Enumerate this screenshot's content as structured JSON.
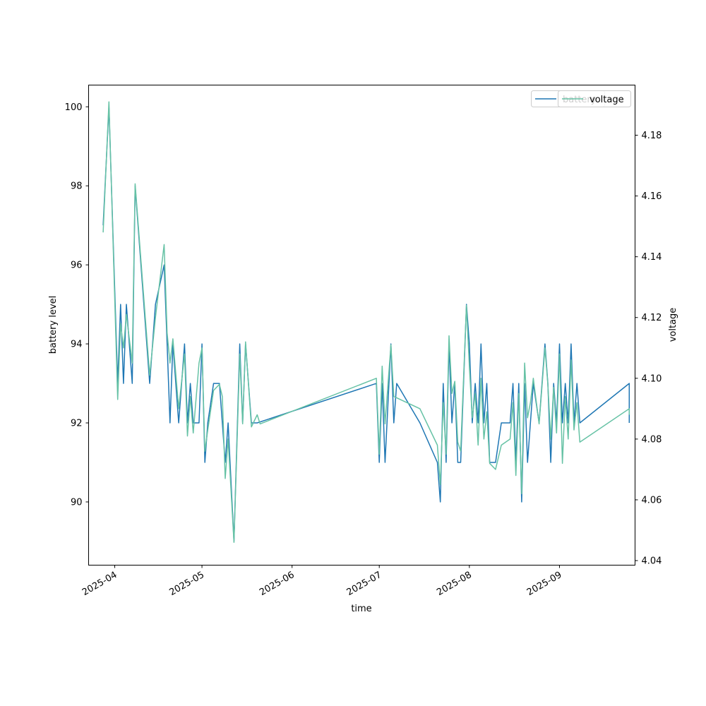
{
  "chart_data": {
    "type": "line",
    "xlabel": "time",
    "ylabel_left": "battery level",
    "ylabel_right": "voltage",
    "xlim": [
      "2025-03-23",
      "2025-09-27"
    ],
    "ylim_left": [
      88.4,
      100.55
    ],
    "ylim_right": [
      4.0385,
      4.1965
    ],
    "x_ticks": [
      {
        "date": "2025-04-01",
        "label": "2025-04"
      },
      {
        "date": "2025-05-01",
        "label": "2025-05"
      },
      {
        "date": "2025-06-01",
        "label": "2025-06"
      },
      {
        "date": "2025-07-01",
        "label": "2025-07"
      },
      {
        "date": "2025-08-01",
        "label": "2025-08"
      },
      {
        "date": "2025-09-01",
        "label": "2025-09"
      }
    ],
    "y_ticks_left": [
      "90",
      "92",
      "94",
      "96",
      "98",
      "100"
    ],
    "y_ticks_right": [
      "4.04",
      "4.06",
      "4.08",
      "4.10",
      "4.12",
      "4.14",
      "4.16",
      "4.18"
    ],
    "legend_placement": "top-right",
    "grid": false,
    "series": [
      {
        "name": "battery",
        "axis": "left",
        "color": "#1f77b4",
        "points": [
          [
            "2025-03-28",
            97
          ],
          [
            "2025-03-30",
            100
          ],
          [
            "2025-04-02",
            93
          ],
          [
            "2025-04-03",
            95
          ],
          [
            "2025-04-04",
            93
          ],
          [
            "2025-04-05",
            95
          ],
          [
            "2025-04-07",
            93
          ],
          [
            "2025-04-08",
            98
          ],
          [
            "2025-04-13",
            93
          ],
          [
            "2025-04-15",
            95
          ],
          [
            "2025-04-18",
            96
          ],
          [
            "2025-04-19",
            94
          ],
          [
            "2025-04-20",
            92
          ],
          [
            "2025-04-21",
            94
          ],
          [
            "2025-04-23",
            92
          ],
          [
            "2025-04-25",
            94
          ],
          [
            "2025-04-26",
            92
          ],
          [
            "2025-04-27",
            93
          ],
          [
            "2025-04-28",
            92
          ],
          [
            "2025-04-30",
            92
          ],
          [
            "2025-05-01",
            94
          ],
          [
            "2025-05-02",
            91
          ],
          [
            "2025-05-03",
            92
          ],
          [
            "2025-05-05",
            93
          ],
          [
            "2025-05-07",
            93
          ],
          [
            "2025-05-08",
            92
          ],
          [
            "2025-05-09",
            91
          ],
          [
            "2025-05-10",
            92
          ],
          [
            "2025-05-12",
            89
          ],
          [
            "2025-05-14",
            94
          ],
          [
            "2025-05-15",
            92
          ],
          [
            "2025-05-16",
            94
          ],
          [
            "2025-05-18",
            92
          ],
          [
            "2025-05-20",
            92
          ],
          [
            "2025-06-30",
            93
          ],
          [
            "2025-07-01",
            91
          ],
          [
            "2025-07-02",
            93
          ],
          [
            "2025-07-03",
            91
          ],
          [
            "2025-07-05",
            94
          ],
          [
            "2025-07-06",
            92
          ],
          [
            "2025-07-07",
            93
          ],
          [
            "2025-07-15",
            92
          ],
          [
            "2025-07-21",
            91
          ],
          [
            "2025-07-22",
            90
          ],
          [
            "2025-07-23",
            93
          ],
          [
            "2025-07-24",
            91
          ],
          [
            "2025-07-25",
            94
          ],
          [
            "2025-07-26",
            92
          ],
          [
            "2025-07-27",
            93
          ],
          [
            "2025-07-28",
            91
          ],
          [
            "2025-07-29",
            91
          ],
          [
            "2025-07-31",
            95
          ],
          [
            "2025-08-01",
            94
          ],
          [
            "2025-08-02",
            92
          ],
          [
            "2025-08-03",
            93
          ],
          [
            "2025-08-04",
            92
          ],
          [
            "2025-08-05",
            94
          ],
          [
            "2025-08-06",
            92
          ],
          [
            "2025-08-07",
            93
          ],
          [
            "2025-08-08",
            91
          ],
          [
            "2025-08-10",
            91
          ],
          [
            "2025-08-12",
            92
          ],
          [
            "2025-08-15",
            92
          ],
          [
            "2025-08-16",
            93
          ],
          [
            "2025-08-17",
            91
          ],
          [
            "2025-08-18",
            93
          ],
          [
            "2025-08-19",
            90
          ],
          [
            "2025-08-20",
            93
          ],
          [
            "2025-08-21",
            91
          ],
          [
            "2025-08-22",
            92
          ],
          [
            "2025-08-23",
            93
          ],
          [
            "2025-08-25",
            92
          ],
          [
            "2025-08-27",
            94
          ],
          [
            "2025-08-28",
            93
          ],
          [
            "2025-08-29",
            91
          ],
          [
            "2025-08-30",
            93
          ],
          [
            "2025-08-31",
            92
          ],
          [
            "2025-09-01",
            94
          ],
          [
            "2025-09-02",
            92
          ],
          [
            "2025-09-03",
            93
          ],
          [
            "2025-09-04",
            92
          ],
          [
            "2025-09-05",
            94
          ],
          [
            "2025-09-06",
            92
          ],
          [
            "2025-09-07",
            93
          ],
          [
            "2025-09-08",
            92
          ],
          [
            "2025-09-25",
            93
          ],
          [
            "2025-09-25",
            92
          ]
        ]
      },
      {
        "name": "voltage",
        "axis": "right",
        "color": "#66c2a5",
        "points": [
          [
            "2025-03-28",
            4.148
          ],
          [
            "2025-03-30",
            4.191
          ],
          [
            "2025-04-02",
            4.093
          ],
          [
            "2025-04-03",
            4.118
          ],
          [
            "2025-04-04",
            4.11
          ],
          [
            "2025-04-05",
            4.121
          ],
          [
            "2025-04-07",
            4.105
          ],
          [
            "2025-04-08",
            4.164
          ],
          [
            "2025-04-13",
            4.101
          ],
          [
            "2025-04-15",
            4.12
          ],
          [
            "2025-04-18",
            4.144
          ],
          [
            "2025-04-19",
            4.115
          ],
          [
            "2025-04-20",
            4.105
          ],
          [
            "2025-04-21",
            4.113
          ],
          [
            "2025-04-23",
            4.09
          ],
          [
            "2025-04-25",
            4.108
          ],
          [
            "2025-04-26",
            4.081
          ],
          [
            "2025-04-27",
            4.094
          ],
          [
            "2025-04-28",
            4.082
          ],
          [
            "2025-04-30",
            4.105
          ],
          [
            "2025-05-01",
            4.11
          ],
          [
            "2025-05-02",
            4.076
          ],
          [
            "2025-05-03",
            4.083
          ],
          [
            "2025-05-05",
            4.096
          ],
          [
            "2025-05-07",
            4.098
          ],
          [
            "2025-05-08",
            4.094
          ],
          [
            "2025-05-09",
            4.067
          ],
          [
            "2025-05-10",
            4.08
          ],
          [
            "2025-05-12",
            4.046
          ],
          [
            "2025-05-14",
            4.108
          ],
          [
            "2025-05-15",
            4.085
          ],
          [
            "2025-05-16",
            4.112
          ],
          [
            "2025-05-18",
            4.084
          ],
          [
            "2025-05-20",
            4.088
          ],
          [
            "2025-05-21",
            4.085
          ],
          [
            "2025-06-30",
            4.1
          ],
          [
            "2025-07-01",
            4.075
          ],
          [
            "2025-07-02",
            4.104
          ],
          [
            "2025-07-03",
            4.085
          ],
          [
            "2025-07-05",
            4.111
          ],
          [
            "2025-07-06",
            4.094
          ],
          [
            "2025-07-15",
            4.09
          ],
          [
            "2025-07-21",
            4.078
          ],
          [
            "2025-07-22",
            4.065
          ],
          [
            "2025-07-23",
            4.092
          ],
          [
            "2025-07-24",
            4.075
          ],
          [
            "2025-07-25",
            4.114
          ],
          [
            "2025-07-26",
            4.095
          ],
          [
            "2025-07-27",
            4.099
          ],
          [
            "2025-07-28",
            4.079
          ],
          [
            "2025-07-29",
            4.076
          ],
          [
            "2025-07-31",
            4.124
          ],
          [
            "2025-08-01",
            4.104
          ],
          [
            "2025-08-02",
            4.087
          ],
          [
            "2025-08-03",
            4.095
          ],
          [
            "2025-08-04",
            4.078
          ],
          [
            "2025-08-05",
            4.1
          ],
          [
            "2025-08-06",
            4.08
          ],
          [
            "2025-08-07",
            4.089
          ],
          [
            "2025-08-08",
            4.072
          ],
          [
            "2025-08-10",
            4.07
          ],
          [
            "2025-08-12",
            4.078
          ],
          [
            "2025-08-15",
            4.08
          ],
          [
            "2025-08-16",
            4.092
          ],
          [
            "2025-08-17",
            4.068
          ],
          [
            "2025-08-18",
            4.095
          ],
          [
            "2025-08-19",
            4.062
          ],
          [
            "2025-08-20",
            4.105
          ],
          [
            "2025-08-21",
            4.087
          ],
          [
            "2025-08-22",
            4.092
          ],
          [
            "2025-08-23",
            4.1
          ],
          [
            "2025-08-25",
            4.085
          ],
          [
            "2025-08-27",
            4.11
          ],
          [
            "2025-08-28",
            4.098
          ],
          [
            "2025-08-29",
            4.08
          ],
          [
            "2025-08-30",
            4.097
          ],
          [
            "2025-08-31",
            4.082
          ],
          [
            "2025-09-01",
            4.108
          ],
          [
            "2025-09-02",
            4.072
          ],
          [
            "2025-09-03",
            4.094
          ],
          [
            "2025-09-04",
            4.08
          ],
          [
            "2025-09-05",
            4.106
          ],
          [
            "2025-09-06",
            4.083
          ],
          [
            "2025-09-07",
            4.092
          ],
          [
            "2025-09-08",
            4.079
          ],
          [
            "2025-09-25",
            4.09
          ],
          [
            "2025-09-25",
            4.088
          ]
        ]
      }
    ]
  }
}
